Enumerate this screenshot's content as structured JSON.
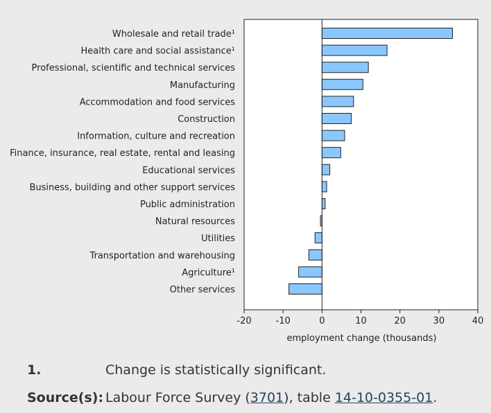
{
  "chart_data": {
    "type": "bar",
    "orientation": "horizontal",
    "categories": [
      "Wholesale and retail trade¹",
      "Health care and social assistance¹",
      "Professional, scientific and technical services",
      "Manufacturing",
      "Accommodation and food services",
      "Construction",
      "Information, culture and recreation",
      "Finance, insurance, real estate, rental and leasing",
      "Educational services",
      "Business, building and other support services",
      "Public administration",
      "Natural resources",
      "Utilities",
      "Transportation and warehousing",
      "Agriculture¹",
      "Other services"
    ],
    "values": [
      33.5,
      16.7,
      11.9,
      10.5,
      8.1,
      7.5,
      5.8,
      4.8,
      2.0,
      1.2,
      0.8,
      -0.4,
      -1.8,
      -3.4,
      -6.0,
      -8.5
    ],
    "xlabel": "employment change (thousands)",
    "ylabel": "",
    "xlim": [
      -20,
      40
    ],
    "xticks": [
      "-20",
      "-10",
      "0",
      "10",
      "20",
      "30",
      "40"
    ],
    "bar_color": "#8ac7ff",
    "grid": false
  },
  "footnotes": {
    "note_number": "1.",
    "note_text": "Change is statistically significant.",
    "source_label": "Source(s):",
    "source_text_before": "Labour Force Survey (",
    "source_link_1": "3701",
    "source_text_middle": "), table ",
    "source_link_2": "14-10-0355-01",
    "source_text_after": "."
  }
}
